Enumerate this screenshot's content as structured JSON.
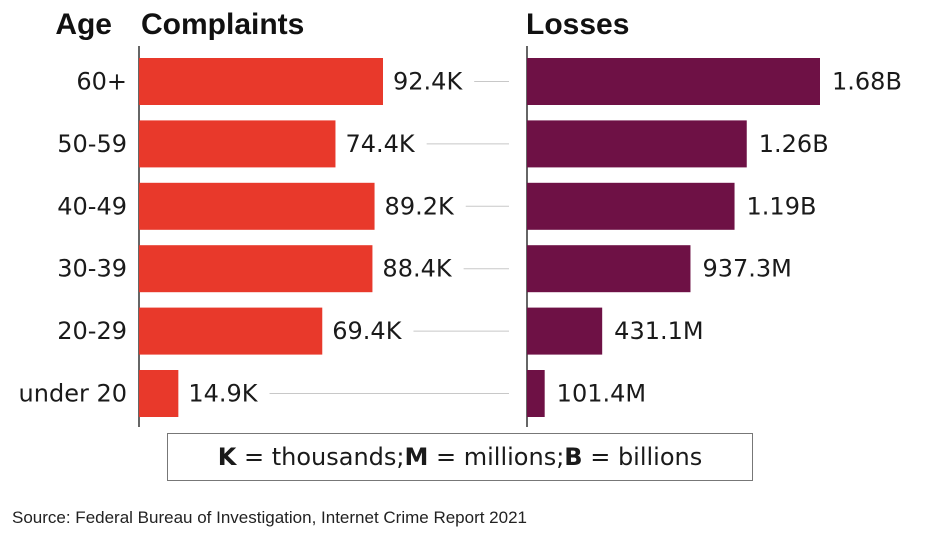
{
  "chart_data": {
    "type": "bar",
    "orientation": "horizontal",
    "category_header": "Age",
    "categories": [
      "60+",
      "50-59",
      "40-49",
      "30-39",
      "20-29",
      "under 20"
    ],
    "series": [
      {
        "name": "Complaints",
        "values": [
          92400,
          74400,
          89200,
          88400,
          69400,
          14900
        ],
        "labels": [
          "92.4K",
          "74.4K",
          "89.2K",
          "88.4K",
          "69.4K",
          "14.9K"
        ],
        "color": "#e8392b"
      },
      {
        "name": "Losses",
        "values": [
          1680000000,
          1260000000,
          1190000000,
          937300000,
          431100000,
          101400000
        ],
        "labels": [
          "1.68B",
          "1.26B",
          "1.19B",
          "937.3M",
          "431.1M",
          "101.4M"
        ],
        "color": "#6e1145"
      }
    ]
  },
  "legend": {
    "k_key": "K",
    "k_text": " = thousands;",
    "m_key": "M",
    "m_text": " = millions;",
    "b_key": "B",
    "b_text": " = billions"
  },
  "source": "Source: Federal Bureau of Investigation, Internet Crime Report 2021"
}
